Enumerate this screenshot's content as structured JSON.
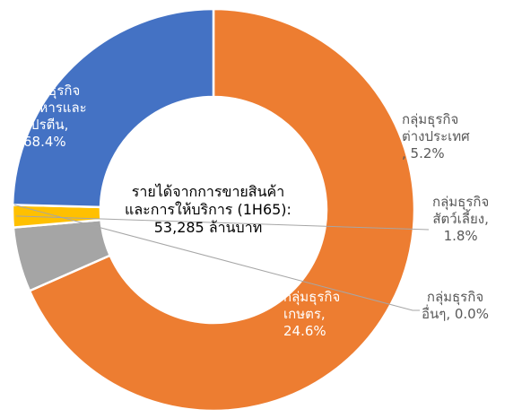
{
  "chart_data": {
    "type": "pie",
    "variant": "donut",
    "center_label": [
      "รายได้จากการขายสินค้า",
      "และการให้บริการ (1H65):",
      "53,285 ล้านบาท"
    ],
    "slices": [
      {
        "name": "กลุ่มธุรกิจอาหารและโปรตีน",
        "value": 68.4,
        "color": "#ED7D31",
        "label_lines": [
          "กลุ่มธุรกิจ",
          "อาหารและ",
          "โปรตีน,",
          "68.4%"
        ]
      },
      {
        "name": "กลุ่มธุรกิจต่างประเทศ",
        "value": 5.2,
        "color": "#A5A5A5",
        "label_lines": [
          "กลุ่มธุรกิจ",
          "ต่างประเทศ",
          ", 5.2%"
        ]
      },
      {
        "name": "กลุ่มธุรกิจสัตว์เลี้ยง",
        "value": 1.8,
        "color": "#FFC000",
        "label_lines": [
          "กลุ่มธุรกิจ",
          "สัตว์เลี้ยง,",
          "1.8%"
        ]
      },
      {
        "name": "กลุ่มธุรกิจอื่นๆ",
        "value": 0.0,
        "color": "#5B9BD5",
        "label_lines": [
          "กลุ่มธุรกิจ",
          "อื่นๆ, 0.0%"
        ]
      },
      {
        "name": "กลุ่มธุรกิจเกษตร",
        "value": 24.6,
        "color": "#4472C4",
        "label_lines": [
          "กลุ่มธุรกิจ",
          "เกษตร,",
          "24.6%"
        ]
      }
    ]
  }
}
